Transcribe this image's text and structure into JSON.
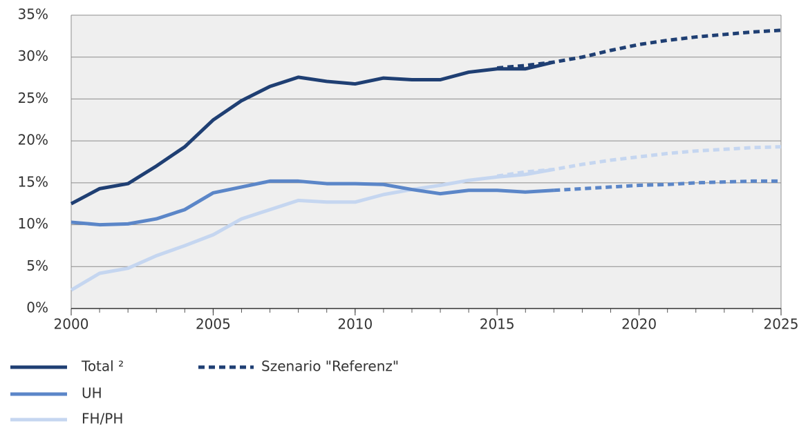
{
  "chart_data": {
    "type": "line",
    "x": [
      2000,
      2001,
      2002,
      2003,
      2004,
      2005,
      2006,
      2007,
      2008,
      2009,
      2010,
      2011,
      2012,
      2013,
      2014,
      2015,
      2016,
      2017,
      2018,
      2019,
      2020,
      2021,
      2022,
      2023,
      2024,
      2025
    ],
    "xlim": [
      2000,
      2025
    ],
    "xticks": [
      2000,
      2005,
      2010,
      2015,
      2020,
      2025
    ],
    "ylim": [
      0,
      35
    ],
    "yticks": [
      {
        "value": 0,
        "label": "0%"
      },
      {
        "value": 5,
        "label": "5%"
      },
      {
        "value": 10,
        "label": "10%"
      },
      {
        "value": 15,
        "label": "15%"
      },
      {
        "value": 20,
        "label": "20%"
      },
      {
        "value": 25,
        "label": "25%"
      },
      {
        "value": 30,
        "label": "30%"
      },
      {
        "value": 35,
        "label": "35%"
      }
    ],
    "grid": true,
    "series": [
      {
        "name": "Total ²",
        "color": "#1f3f73",
        "values": [
          12.5,
          14.3,
          14.9,
          17.0,
          19.3,
          22.5,
          24.8,
          26.5,
          27.6,
          27.1,
          26.8,
          27.5,
          27.3,
          27.3,
          28.2,
          28.6,
          28.6,
          29.4,
          null,
          null,
          null,
          null,
          null,
          null,
          null,
          null
        ],
        "scenario": [
          null,
          null,
          null,
          null,
          null,
          null,
          null,
          null,
          null,
          null,
          null,
          null,
          null,
          null,
          null,
          28.7,
          29.0,
          29.4,
          30.0,
          30.8,
          31.5,
          32.0,
          32.4,
          32.7,
          33.0,
          33.2
        ]
      },
      {
        "name": "UH",
        "color": "#5b86c8",
        "values": [
          10.3,
          10.0,
          10.1,
          10.7,
          11.8,
          13.8,
          14.5,
          15.2,
          15.2,
          14.9,
          14.9,
          14.8,
          14.2,
          13.7,
          14.1,
          14.1,
          13.9,
          14.1,
          null,
          null,
          null,
          null,
          null,
          null,
          null,
          null
        ],
        "scenario": [
          null,
          null,
          null,
          null,
          null,
          null,
          null,
          null,
          null,
          null,
          null,
          null,
          null,
          null,
          null,
          null,
          null,
          14.1,
          14.3,
          14.5,
          14.7,
          14.8,
          15.0,
          15.1,
          15.2,
          15.2
        ]
      },
      {
        "name": "FH/PH",
        "color": "#c5d6f0",
        "values": [
          2.2,
          4.2,
          4.8,
          6.3,
          7.5,
          8.8,
          10.7,
          11.8,
          12.9,
          12.7,
          12.7,
          13.6,
          14.2,
          14.7,
          15.3,
          15.7,
          16.0,
          16.6,
          null,
          null,
          null,
          null,
          null,
          null,
          null,
          null
        ],
        "scenario": [
          null,
          null,
          null,
          null,
          null,
          null,
          null,
          null,
          null,
          null,
          null,
          null,
          null,
          null,
          null,
          15.8,
          16.3,
          16.6,
          17.2,
          17.7,
          18.1,
          18.5,
          18.8,
          19.0,
          19.2,
          19.3
        ]
      }
    ],
    "scenario_legend": {
      "label": "Szenario \"Referenz\"",
      "color": "#1f3f73"
    }
  }
}
